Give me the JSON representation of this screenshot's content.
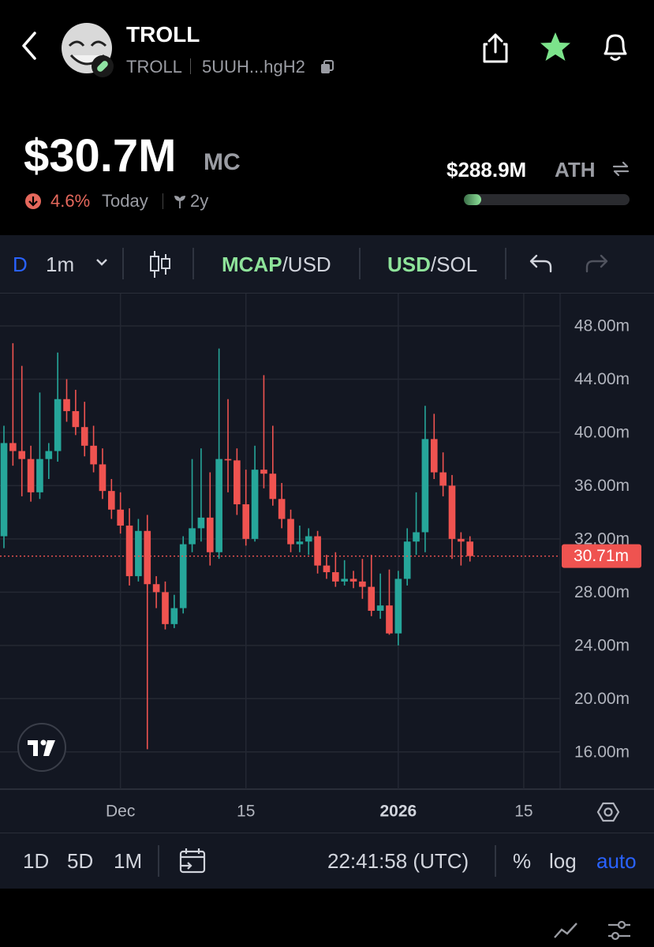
{
  "header": {
    "title": "TROLL",
    "symbol": "TROLL",
    "address": "5UUH...hgH2"
  },
  "stats": {
    "market_cap": "$30.7M",
    "market_cap_unit": "MC",
    "change": "4.6%",
    "change_period": "Today",
    "age": "2y",
    "ath": "$288.9M",
    "ath_label": "ATH"
  },
  "toolbar": {
    "interval_prefix": "D",
    "interval": "1m",
    "mcap": "MCAP",
    "mcap_quote": "/USD",
    "usd": "USD",
    "usd_quote": "/SOL"
  },
  "bottom_bar": {
    "ranges": [
      "1D",
      "5D",
      "1M"
    ],
    "time": "22:41:58 (UTC)",
    "percent": "%",
    "log": "log",
    "auto": "auto"
  },
  "chart_data": {
    "type": "candlestick",
    "categories": [
      null,
      null,
      null,
      null,
      null,
      null,
      null,
      null,
      null,
      null,
      null,
      null,
      null,
      null,
      null,
      null,
      null,
      null,
      null,
      null,
      null,
      null,
      null,
      null,
      null,
      null,
      null,
      null,
      null,
      null,
      null,
      null,
      null,
      null,
      null,
      null,
      null,
      null,
      null,
      null,
      null,
      null,
      null,
      null,
      null,
      null,
      null,
      null,
      null,
      null,
      null,
      null,
      null
    ],
    "open": [
      32.2,
      39.2,
      38.6,
      38.0,
      35.5,
      38.0,
      38.6,
      42.5,
      41.6,
      40.4,
      39.0,
      37.6,
      35.6,
      34.2,
      33.0,
      29.2,
      32.6,
      28.6,
      28.0,
      25.6,
      26.8,
      31.6,
      32.8,
      33.6,
      31.0,
      38.0,
      37.9,
      34.6,
      32.0,
      37.2,
      36.9,
      35.0,
      33.5,
      31.6,
      31.8,
      32.2,
      30.0,
      29.5,
      28.8,
      29.0,
      28.8,
      28.4,
      26.6,
      27.0,
      24.9,
      29.0,
      31.8,
      32.5,
      39.5,
      37.0,
      36.0,
      32.0,
      31.8
    ],
    "high": [
      40.5,
      46.7,
      45.0,
      39.0,
      43.0,
      39.2,
      46.0,
      44.0,
      43.2,
      42.3,
      40.5,
      38.8,
      36.5,
      35.5,
      34.3,
      33.5,
      33.8,
      29.2,
      28.8,
      27.8,
      32.2,
      38.0,
      38.8,
      37.0,
      46.3,
      42.5,
      38.8,
      37.2,
      39.0,
      44.3,
      40.5,
      36.2,
      34.2,
      33.0,
      32.8,
      32.6,
      30.8,
      31.0,
      30.4,
      29.6,
      30.5,
      30.8,
      29.4,
      29.7,
      29.6,
      32.8,
      35.5,
      42.0,
      41.4,
      38.5,
      36.8,
      32.5,
      32.2
    ],
    "low": [
      31.3,
      37.5,
      35.2,
      34.8,
      35.0,
      36.5,
      37.8,
      40.8,
      39.8,
      38.2,
      37.0,
      35.0,
      33.5,
      32.4,
      28.5,
      28.8,
      16.2,
      26.8,
      25.2,
      25.3,
      26.4,
      31.0,
      31.8,
      30.0,
      30.5,
      35.5,
      33.8,
      31.5,
      31.8,
      35.8,
      34.5,
      32.8,
      31.0,
      31.0,
      30.8,
      29.4,
      29.0,
      28.4,
      28.5,
      28.3,
      27.5,
      26.2,
      26.0,
      24.8,
      24.0,
      28.5,
      30.8,
      31.0,
      36.5,
      35.2,
      30.5,
      30.0,
      30.3
    ],
    "close": [
      39.2,
      38.6,
      38.0,
      35.5,
      38.0,
      38.6,
      42.5,
      41.6,
      40.4,
      39.0,
      37.6,
      35.6,
      34.2,
      33.0,
      29.2,
      32.6,
      28.6,
      28.0,
      25.6,
      26.8,
      31.6,
      32.8,
      33.6,
      31.0,
      38.0,
      37.9,
      34.6,
      32.0,
      37.2,
      36.9,
      35.0,
      33.5,
      31.6,
      31.8,
      32.2,
      30.0,
      29.5,
      28.8,
      29.0,
      28.8,
      28.4,
      26.6,
      27.0,
      24.9,
      29.0,
      31.8,
      32.5,
      39.5,
      37.0,
      36.0,
      32.0,
      31.8,
      30.71
    ],
    "up_color": "#26a69a",
    "down_color": "#ef5350",
    "xlim": [
      -0.44,
      62.06
    ],
    "xticks": [
      {
        "value": 13,
        "label": "Dec"
      },
      {
        "value": 27,
        "label": "15"
      },
      {
        "value": 44,
        "label": "2026"
      },
      {
        "value": 58,
        "label": "15"
      }
    ],
    "ylim": [
      13.2,
      50.43
    ],
    "yticks": [
      {
        "value": 16,
        "label": "16.00m"
      },
      {
        "value": 20,
        "label": "20.00m"
      },
      {
        "value": 24,
        "label": "24.00m"
      },
      {
        "value": 28,
        "label": "28.00m"
      },
      {
        "value": 32,
        "label": "32.00m"
      },
      {
        "value": 36,
        "label": "36.00m"
      },
      {
        "value": 40,
        "label": "40.00m"
      },
      {
        "value": 44,
        "label": "44.00m"
      },
      {
        "value": 48,
        "label": "48.00m"
      }
    ],
    "last_price": {
      "value": 30.71,
      "label": "30.71m"
    },
    "grid": true,
    "log_scale": false
  }
}
